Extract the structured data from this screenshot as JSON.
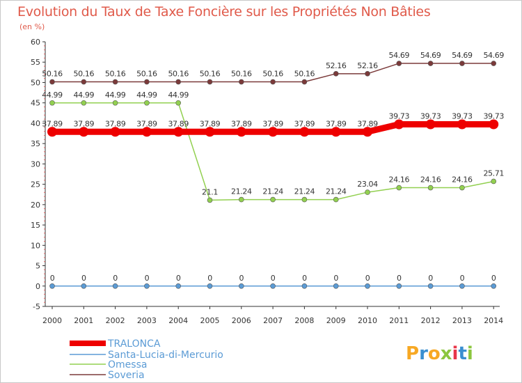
{
  "title": "Evolution du Taux de Taxe Foncière sur les Propriétés Non Bâties",
  "subtitle": "(en %)",
  "logo": {
    "text": "Proxiti",
    "colors": [
      "#f7a823",
      "#3a8fd0",
      "#f7a823",
      "#8cc63f",
      "#e8374a",
      "#3a8fd0",
      "#8cc63f"
    ]
  },
  "chart_data": {
    "type": "line",
    "x": [
      2000,
      2001,
      2002,
      2003,
      2004,
      2005,
      2006,
      2007,
      2008,
      2009,
      2010,
      2011,
      2012,
      2013,
      2014
    ],
    "x_tick_labels": [
      "2000",
      "2001",
      "2002",
      "2003",
      "2004",
      "2005",
      "2006",
      "2007",
      "2008",
      "2009",
      "2010",
      "2011",
      "2012",
      "2013",
      "2014"
    ],
    "ylim": [
      -5,
      60
    ],
    "y_ticks": [
      -5,
      0,
      5,
      10,
      15,
      20,
      25,
      30,
      35,
      40,
      45,
      50,
      55,
      60
    ],
    "y_tick_labels": [
      "-5",
      "0",
      "5",
      "10",
      "15",
      "20",
      "25",
      "30",
      "35",
      "40",
      "45",
      "50",
      "55",
      "60"
    ],
    "grid": false,
    "legend_position": "bottom-left",
    "series": [
      {
        "name": "TRALONCA",
        "color": "#ee0000",
        "values": [
          37.89,
          37.89,
          37.89,
          37.89,
          37.89,
          37.89,
          37.89,
          37.89,
          37.89,
          37.89,
          37.89,
          39.73,
          39.73,
          39.73,
          39.73
        ],
        "labels": [
          "37.89",
          "37.89",
          "37.89",
          "37.89",
          "37.89",
          "37.89",
          "37.89",
          "37.89",
          "37.89",
          "37.89",
          "37.89",
          "39.73",
          "39.73",
          "39.73",
          "39.73"
        ]
      },
      {
        "name": "Santa-Lucia-di-Mercurio",
        "color": "#5b9bd5",
        "values": [
          0,
          0,
          0,
          0,
          0,
          0,
          0,
          0,
          0,
          0,
          0,
          0,
          0,
          0,
          0
        ],
        "labels": [
          "0",
          "0",
          "0",
          "0",
          "0",
          "0",
          "0",
          "0",
          "0",
          "0",
          "0",
          "0",
          "0",
          "0",
          "0"
        ]
      },
      {
        "name": "Omessa",
        "color": "#92d050",
        "values": [
          44.99,
          44.99,
          44.99,
          44.99,
          44.99,
          21.1,
          21.24,
          21.24,
          21.24,
          21.24,
          23.04,
          24.16,
          24.16,
          24.16,
          25.71
        ],
        "labels": [
          "44.99",
          "44.99",
          "44.99",
          "44.99",
          "44.99",
          "21.1",
          "21.24",
          "21.24",
          "21.24",
          "21.24",
          "23.04",
          "24.16",
          "24.16",
          "24.16",
          "25.71"
        ]
      },
      {
        "name": "Soveria",
        "color": "#7b3a3a",
        "values": [
          50.16,
          50.16,
          50.16,
          50.16,
          50.16,
          50.16,
          50.16,
          50.16,
          50.16,
          52.16,
          52.16,
          54.69,
          54.69,
          54.69,
          54.69
        ],
        "labels": [
          "50.16",
          "50.16",
          "50.16",
          "50.16",
          "50.16",
          "50.16",
          "50.16",
          "50.16",
          "50.16",
          "52.16",
          "52.16",
          "54.69",
          "54.69",
          "54.69",
          "54.69"
        ]
      }
    ]
  }
}
